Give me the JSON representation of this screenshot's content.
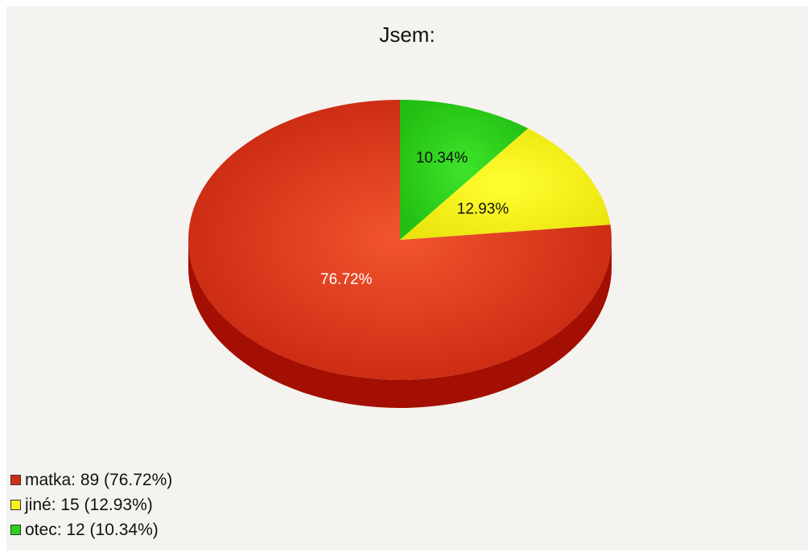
{
  "chart_data": {
    "type": "pie",
    "title": "Jsem:",
    "slices": [
      {
        "label": "matka",
        "value": 89,
        "percent": "76.72%",
        "legend_text": "matka: 89 (76.72%)",
        "color": "#d42e12"
      },
      {
        "label": "jiné",
        "value": 15,
        "percent": "12.93%",
        "legend_text": "jiné: 15 (12.93%)",
        "color": "#f6f21c"
      },
      {
        "label": "otec",
        "value": 12,
        "percent": "10.34%",
        "legend_text": "otec: 12 (10.34%)",
        "color": "#2bd018"
      }
    ],
    "legend_position": "bottom-left",
    "background": "#f4f3ef"
  }
}
